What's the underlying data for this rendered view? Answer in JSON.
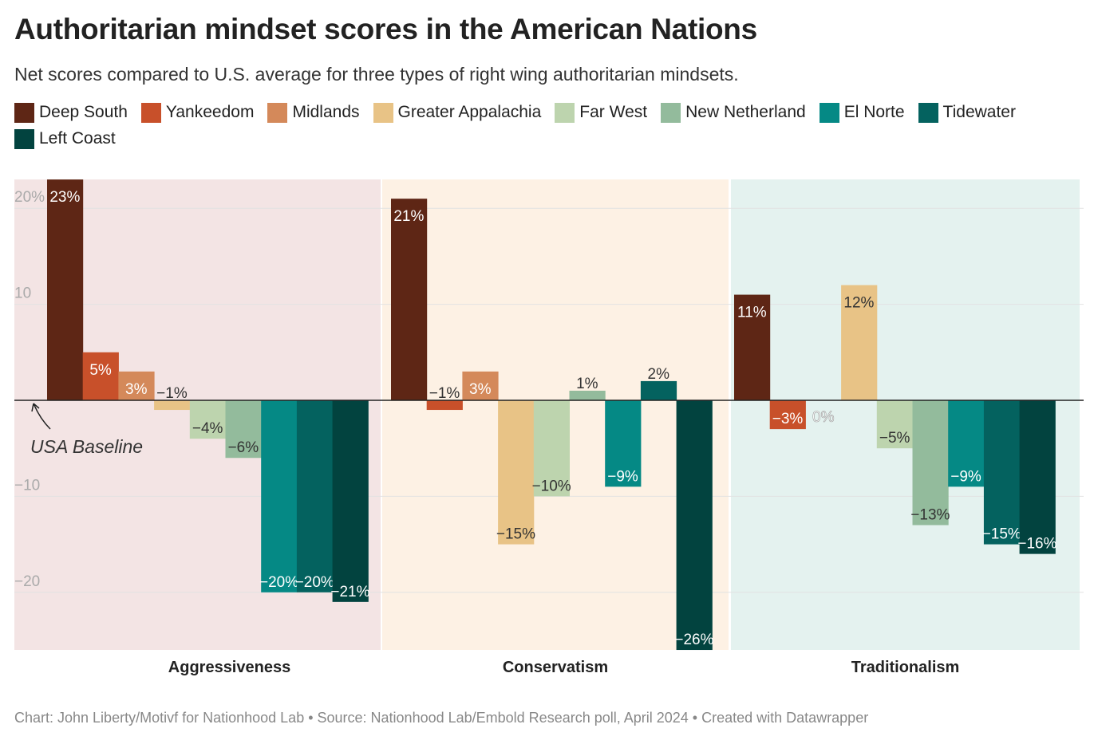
{
  "title": "Authoritarian mindset scores in the American Nations",
  "subtitle": "Net scores compared to U.S. average for three types of right wing authoritarian mindsets.",
  "footer": "Chart: John Liberty/Motivf for Nationhood Lab • Source: Nationhood Lab/Embold Research poll, April 2024 • Created with Datawrapper",
  "chart_data": {
    "type": "bar",
    "title": "Authoritarian mindset scores in the American Nations",
    "ylim": [
      -26,
      23
    ],
    "yticks": [
      {
        "v": 20,
        "label": "20%"
      },
      {
        "v": 10,
        "label": "10"
      },
      {
        "v": -10,
        "label": "−10"
      },
      {
        "v": -20,
        "label": "−20"
      }
    ],
    "grid": true,
    "legend": "top",
    "annotation": "USA Baseline",
    "categories": [
      "Aggressiveness",
      "Conservatism",
      "Traditionalism"
    ],
    "group_backgrounds": [
      "#f3e4e4",
      "#fdf1e4",
      "#e4f2ef"
    ],
    "series": [
      {
        "name": "Deep South",
        "color": "#5e2615",
        "label_color": "#ffffff",
        "values": [
          23,
          21,
          11
        ]
      },
      {
        "name": "Yankeedom",
        "color": "#c8502a",
        "label_color": "#ffffff",
        "values": [
          5,
          -1,
          -3
        ]
      },
      {
        "name": "Midlands",
        "color": "#d4895a",
        "label_color": "#ffffff",
        "values": [
          3,
          3,
          0
        ]
      },
      {
        "name": "Greater Appalachia",
        "color": "#e8c386",
        "label_color": "#333333",
        "values": [
          -1,
          -15,
          12
        ]
      },
      {
        "name": "Far West",
        "color": "#bdd4ae",
        "label_color": "#333333",
        "values": [
          -4,
          -10,
          -5
        ]
      },
      {
        "name": "New Netherland",
        "color": "#93bb9c",
        "label_color": "#333333",
        "values": [
          -6,
          1,
          -13
        ]
      },
      {
        "name": "El Norte",
        "color": "#058985",
        "label_color": "#ffffff",
        "values": [
          -20,
          -9,
          -9
        ]
      },
      {
        "name": "Tidewater",
        "color": "#04625f",
        "label_color": "#ffffff",
        "values": [
          -20,
          2,
          -15
        ]
      },
      {
        "name": "Left Coast",
        "color": "#02433f",
        "label_color": "#ffffff",
        "values": [
          -21,
          -26,
          -16
        ]
      }
    ]
  }
}
